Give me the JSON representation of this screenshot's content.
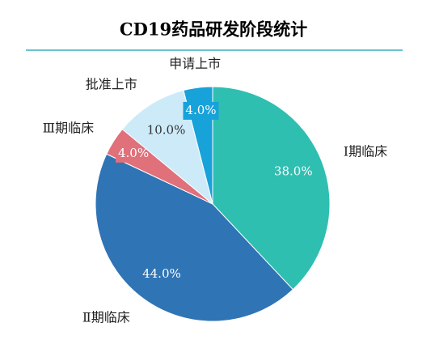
{
  "chart_data": {
    "type": "pie",
    "title": "CD19药品研发阶段统计",
    "categories": [
      "Ⅰ期临床",
      "Ⅱ期临床",
      "Ⅲ期临床",
      "批准上市",
      "申请上市"
    ],
    "values": [
      38.0,
      44.0,
      4.0,
      10.0,
      4.0
    ],
    "value_labels": [
      "38.0%",
      "44.0%",
      "4.0%",
      "10.0%",
      "4.0%"
    ],
    "colors": [
      "#2ebfb1",
      "#2f74b5",
      "#e0707a",
      "#cdeaf9",
      "#17a2da"
    ]
  }
}
